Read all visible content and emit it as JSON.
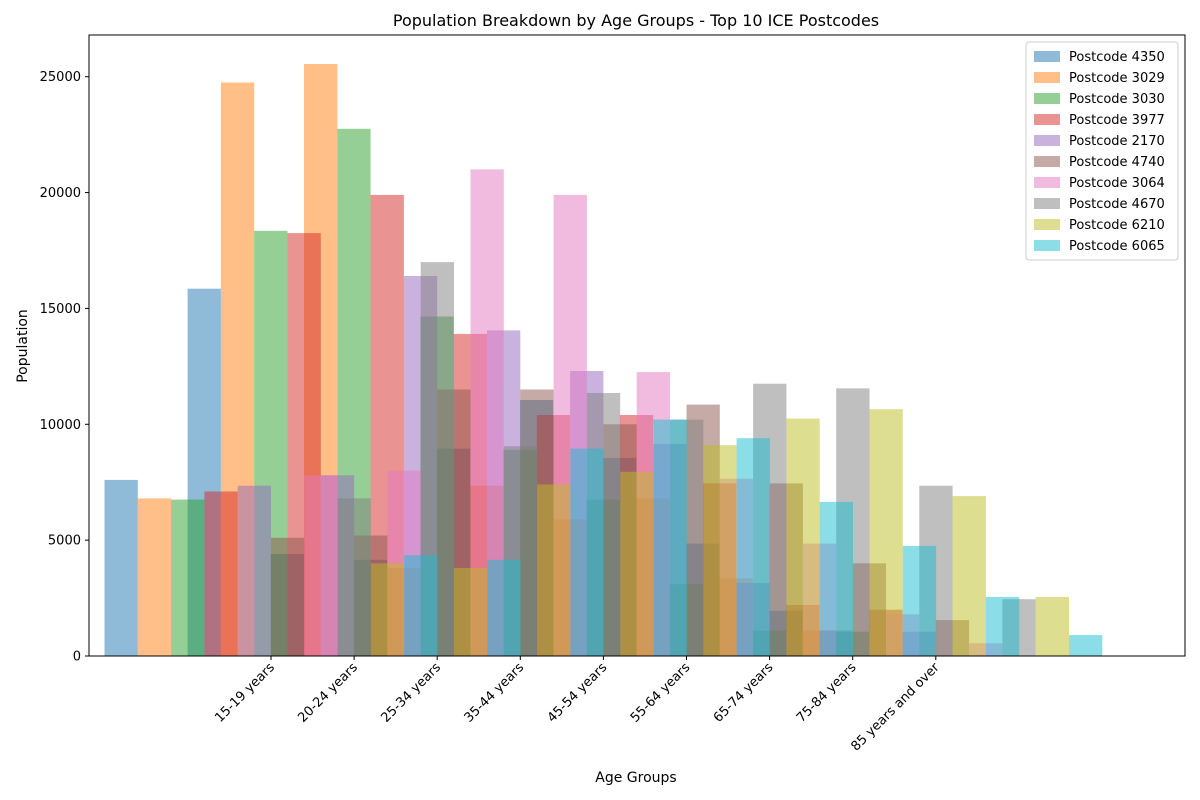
{
  "chart_data": {
    "type": "bar",
    "title": "Population Breakdown by Age Groups - Top 10 ICE Postcodes",
    "xlabel": "Age Groups",
    "ylabel": "Population",
    "ylim": [
      0,
      26800
    ],
    "yticks": [
      0,
      5000,
      10000,
      15000,
      20000,
      25000
    ],
    "grid": false,
    "legend_position": "top-right",
    "bar_alpha": 0.5,
    "categories": [
      "15-19 years",
      "20-24 years",
      "25-34 years",
      "35-44 years",
      "45-54 years",
      "55-64 years",
      "65-74 years",
      "75-84 years",
      "85 years and over"
    ],
    "series": [
      {
        "name": "Postcode 4350",
        "color": "#1f77b4",
        "values": [
          7600,
          15850,
          4400,
          4150,
          8950,
          11050,
          8550,
          4850,
          1950
        ]
      },
      {
        "name": "Postcode 3029",
        "color": "#ff7f0e",
        "values": [
          6800,
          24750,
          25550,
          3800,
          7350,
          5900,
          6800,
          3350,
          1100
        ]
      },
      {
        "name": "Postcode 3030",
        "color": "#2ca02c",
        "values": [
          6750,
          18350,
          22750,
          14650,
          8900,
          6750,
          3100,
          1100,
          1050
        ]
      },
      {
        "name": "Postcode 3977",
        "color": "#d62728",
        "values": [
          7100,
          18250,
          19900,
          13900,
          10400,
          10400,
          7450,
          2200,
          2000
        ]
      },
      {
        "name": "Postcode 2170",
        "color": "#9467bd",
        "values": [
          7350,
          7800,
          16400,
          14050,
          12300,
          9150,
          3150,
          1100,
          1050
        ]
      },
      {
        "name": "Postcode 4740",
        "color": "#8c564b",
        "values": [
          5100,
          5200,
          11500,
          11500,
          10000,
          10850,
          7450,
          4000,
          1550
        ]
      },
      {
        "name": "Postcode 3064",
        "color": "#e377c2",
        "values": [
          7800,
          8000,
          21000,
          19900,
          12250,
          7650,
          4850,
          1800,
          550
        ]
      },
      {
        "name": "Postcode 4670",
        "color": "#7f7f7f",
        "values": [
          6800,
          17000,
          9050,
          11350,
          10200,
          11750,
          11550,
          7350,
          2450
        ]
      },
      {
        "name": "Postcode 6210",
        "color": "#bcbd22",
        "values": [
          4000,
          3800,
          7400,
          7950,
          9100,
          10250,
          10650,
          6900,
          2550
        ]
      },
      {
        "name": "Postcode 6065",
        "color": "#17becf",
        "values": [
          4350,
          4150,
          8950,
          10200,
          9400,
          6650,
          4750,
          2550,
          900
        ]
      }
    ]
  }
}
